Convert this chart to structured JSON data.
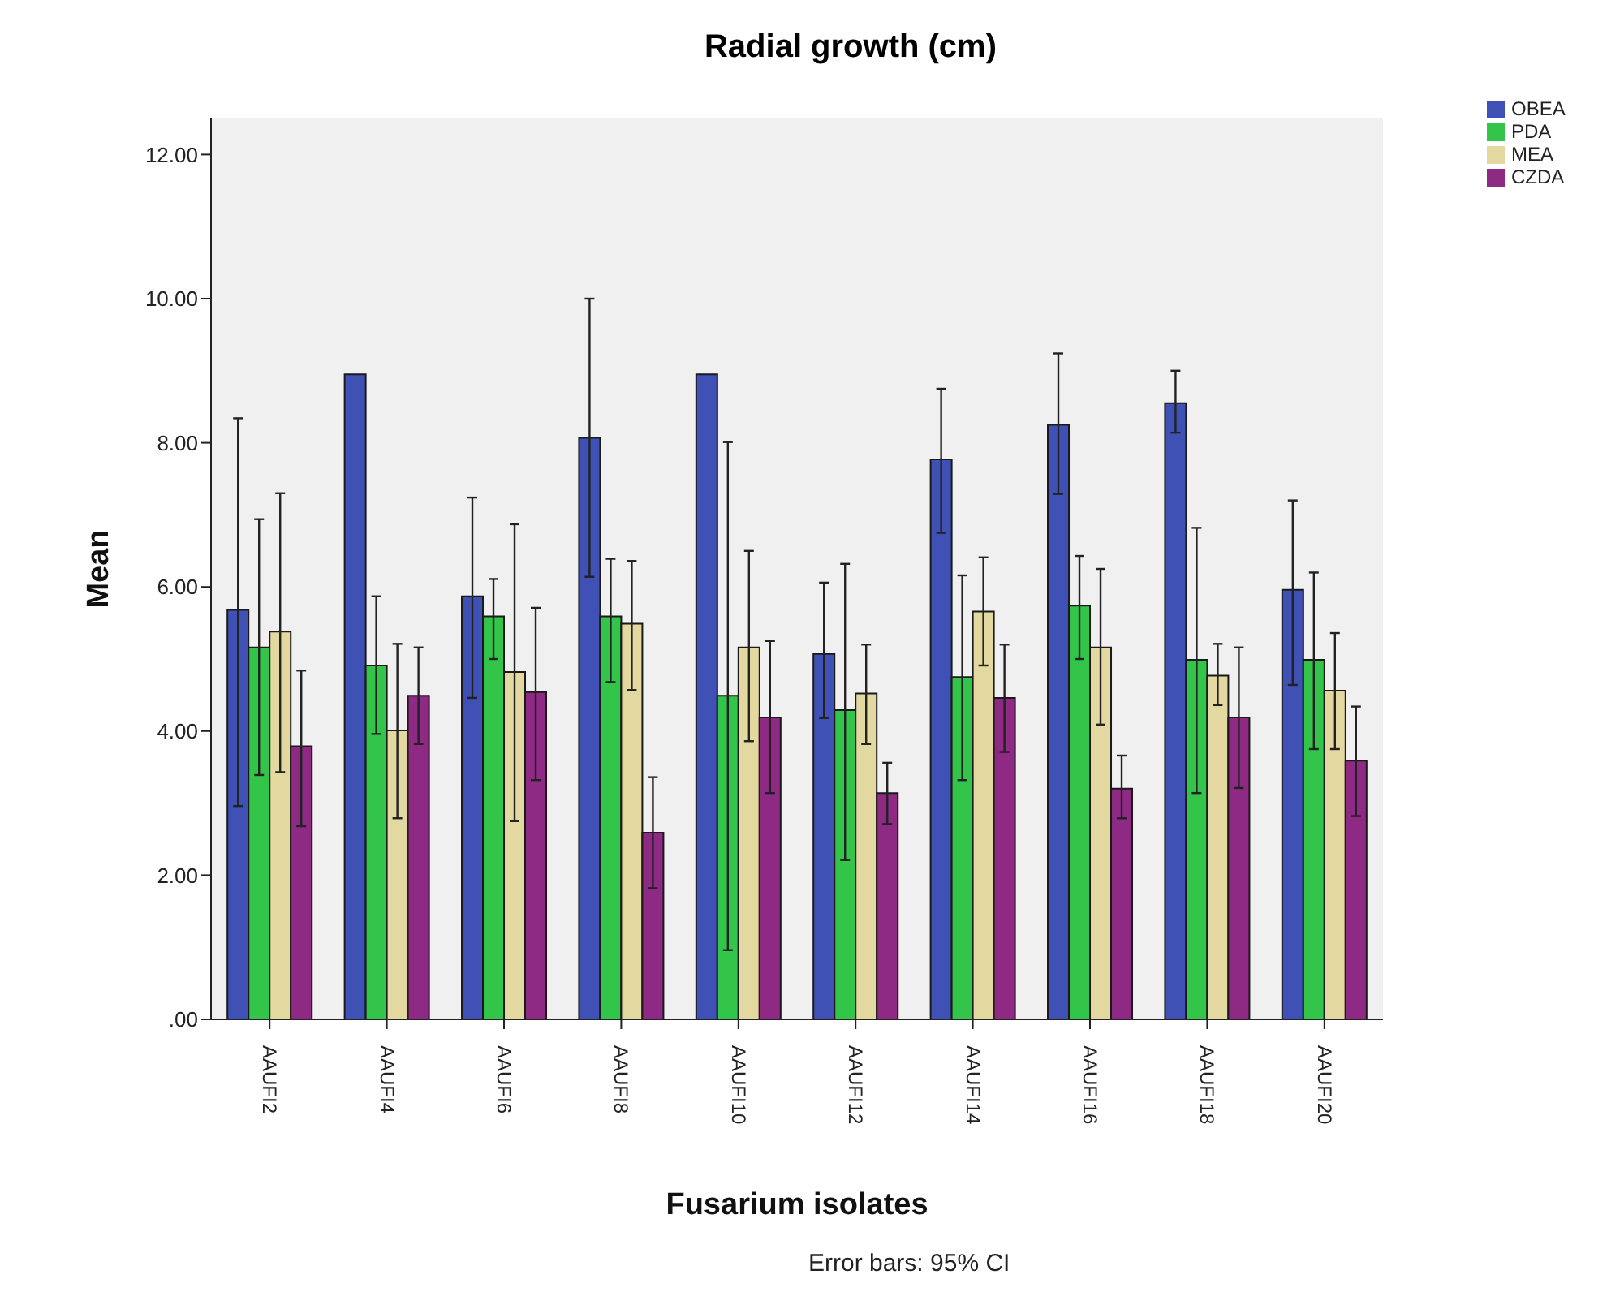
{
  "chart_data": {
    "type": "bar",
    "title": "Radial growth (cm)",
    "xlabel": "Fusarium isolates",
    "ylabel": "Mean",
    "annotations": [
      "Error bars: 95% CI"
    ],
    "categories": [
      "AAUFI2",
      "AAUFI4",
      "AAUFI6",
      "AAUFI8",
      "AAUFI10",
      "AAUFI12",
      "AAUFI14",
      "AAUFI16",
      "AAUFI18",
      "AAUFI20"
    ],
    "series": [
      {
        "name": "OBEA",
        "color": "#3f51b5",
        "values": [
          5.68,
          8.95,
          5.87,
          8.07,
          8.95,
          5.07,
          7.77,
          8.25,
          8.55,
          5.96
        ],
        "errors": [
          [
            2.96,
            8.34
          ],
          null,
          [
            4.46,
            7.24
          ],
          [
            6.14,
            10.0
          ],
          null,
          [
            4.18,
            6.06
          ],
          [
            6.75,
            8.75
          ],
          [
            7.29,
            9.24
          ],
          [
            8.14,
            9.0
          ],
          [
            4.64,
            7.2
          ]
        ]
      },
      {
        "name": "PDA",
        "color": "#33c44a",
        "values": [
          5.16,
          4.91,
          5.59,
          5.59,
          4.49,
          4.29,
          4.75,
          5.74,
          4.99,
          4.99
        ],
        "errors": [
          [
            3.39,
            6.94
          ],
          [
            3.96,
            5.87
          ],
          [
            5.0,
            6.11
          ],
          [
            4.68,
            6.39
          ],
          [
            0.96,
            8.01
          ],
          [
            2.21,
            6.32
          ],
          [
            3.32,
            6.16
          ],
          [
            5.0,
            6.43
          ],
          [
            3.14,
            6.82
          ],
          [
            3.75,
            6.2
          ]
        ]
      },
      {
        "name": "MEA",
        "color": "#e3d9a0",
        "values": [
          5.38,
          4.01,
          4.82,
          5.49,
          5.16,
          4.52,
          5.66,
          5.16,
          4.77,
          4.56
        ],
        "errors": [
          [
            3.43,
            7.3
          ],
          [
            2.79,
            5.21
          ],
          [
            2.75,
            6.87
          ],
          [
            4.57,
            6.36
          ],
          [
            3.86,
            6.5
          ],
          [
            3.82,
            5.2
          ],
          [
            4.91,
            6.41
          ],
          [
            4.09,
            6.25
          ],
          [
            4.36,
            5.21
          ],
          [
            3.75,
            5.36
          ]
        ]
      },
      {
        "name": "CZDA",
        "color": "#8e2a84",
        "values": [
          3.79,
          4.49,
          4.54,
          2.59,
          4.19,
          3.14,
          4.46,
          3.2,
          4.19,
          3.59
        ],
        "errors": [
          [
            2.68,
            4.84
          ],
          [
            3.82,
            5.16
          ],
          [
            3.32,
            5.71
          ],
          [
            1.82,
            3.36
          ],
          [
            3.14,
            5.25
          ],
          [
            2.71,
            3.56
          ],
          [
            3.71,
            5.2
          ],
          [
            2.79,
            3.66
          ],
          [
            3.21,
            5.16
          ],
          [
            2.82,
            4.34
          ]
        ]
      }
    ],
    "ylim": [
      0,
      12.5
    ],
    "yticks": [
      {
        "value": 0,
        "label": ".00"
      },
      {
        "value": 2,
        "label": "2.00"
      },
      {
        "value": 4,
        "label": "4.00"
      },
      {
        "value": 6,
        "label": "6.00"
      },
      {
        "value": 8,
        "label": "8.00"
      },
      {
        "value": 10,
        "label": "10.00"
      },
      {
        "value": 12,
        "label": "12.00"
      }
    ],
    "grid": false,
    "legend": "top right"
  }
}
